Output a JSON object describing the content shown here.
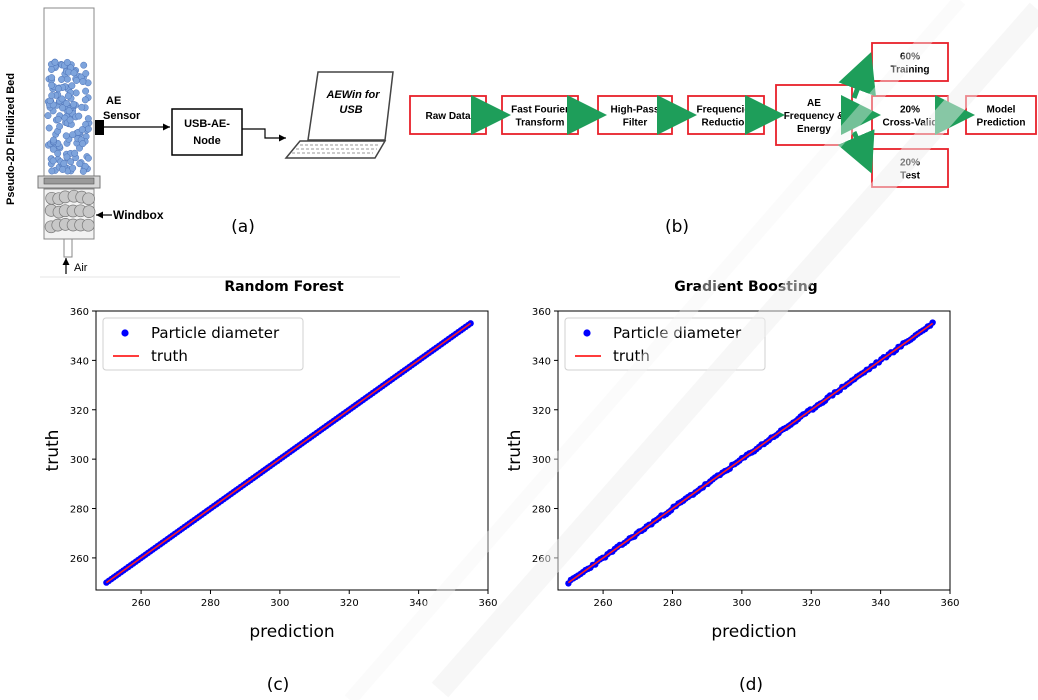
{
  "panel_a": {
    "bed_label": "Pseudo-2D Fluidized Bed",
    "sensor_label_1": "AE",
    "sensor_label_2": "Sensor",
    "node_label_1": "USB-AE-",
    "node_label_2": "Node",
    "laptop_label_1": "AEWin for",
    "laptop_label_2": "USB",
    "windbox_label": "Windbox",
    "air_label": "Air",
    "caption": "(a)"
  },
  "panel_b": {
    "boxes": [
      {
        "l1": "Raw Data",
        "l2": ""
      },
      {
        "l1": "Fast Fourier",
        "l2": "Transform"
      },
      {
        "l1": "High-Pass",
        "l2": "Filter"
      },
      {
        "l1": "Frequencies",
        "l2": "Reduction"
      },
      {
        "l1": "AE",
        "l2": "Frequency &",
        "l3": "Energy"
      },
      {
        "l1": "60%",
        "l2": "Training"
      },
      {
        "l1": "20%",
        "l2": "Cross-Valid"
      },
      {
        "l1": "20%",
        "l2": "Test"
      },
      {
        "l1": "Model",
        "l2": "Prediction"
      }
    ],
    "caption": "(b)",
    "box_color": "#e8202a",
    "arrow_color": "#1e9e5a"
  },
  "colors": {
    "point": "#0000ff",
    "line": "#ff2020",
    "bubble": "#7ea4dc",
    "windbox_ball": "#c8c8c8"
  },
  "chart_data": [
    {
      "type": "scatter",
      "title": "Random Forest",
      "xlabel": "prediction",
      "ylabel": "truth",
      "xlim": [
        247,
        360
      ],
      "ylim": [
        247,
        360
      ],
      "xticks": [
        260,
        280,
        300,
        320,
        340,
        360
      ],
      "yticks": [
        260,
        280,
        300,
        320,
        340,
        360
      ],
      "grid": false,
      "legend": "top-left",
      "series": [
        {
          "name": "Particle diameter",
          "kind": "points",
          "x_range": [
            250,
            355
          ],
          "y_range": [
            250,
            355
          ],
          "relation": "y = x"
        },
        {
          "name": "truth",
          "kind": "line",
          "x": [
            250,
            355
          ],
          "y": [
            250,
            355
          ]
        }
      ],
      "caption": "(c)"
    },
    {
      "type": "scatter",
      "title": "Gradient Boosting",
      "xlabel": "prediction",
      "ylabel": "truth",
      "xlim": [
        247,
        360
      ],
      "ylim": [
        247,
        360
      ],
      "xticks": [
        260,
        280,
        300,
        320,
        340,
        360
      ],
      "yticks": [
        260,
        280,
        300,
        320,
        340,
        360
      ],
      "grid": false,
      "legend": "top-left",
      "series": [
        {
          "name": "Particle diameter",
          "kind": "points",
          "x_range": [
            250,
            355
          ],
          "y_range": [
            250,
            355
          ],
          "relation": "y ≈ x"
        },
        {
          "name": "truth",
          "kind": "line",
          "x": [
            250,
            355
          ],
          "y": [
            250,
            355
          ]
        }
      ],
      "caption": "(d)"
    }
  ]
}
